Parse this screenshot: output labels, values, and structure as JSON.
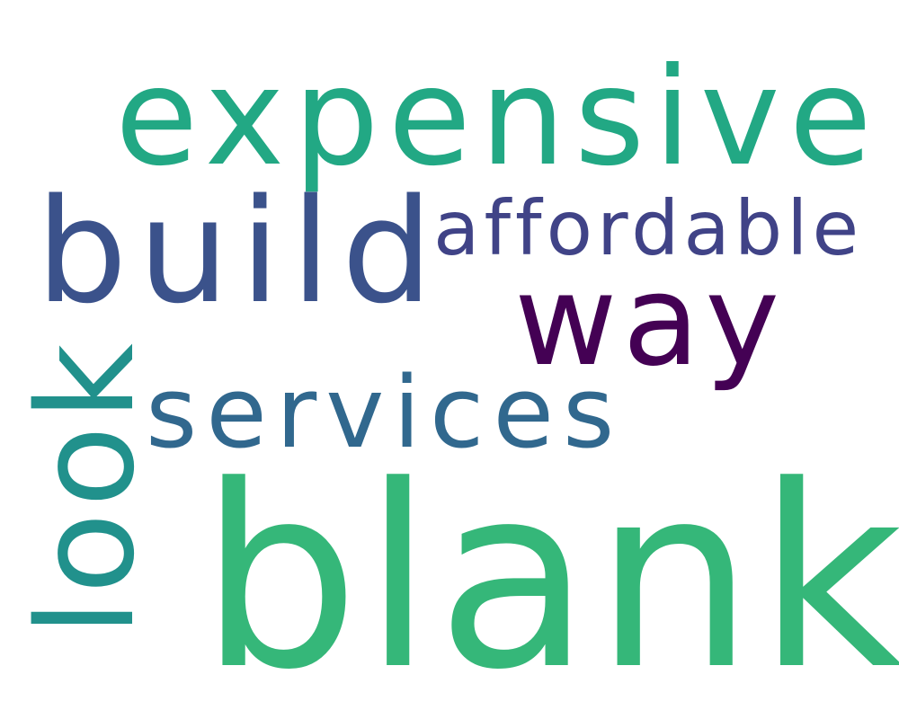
{
  "words": {
    "expensive": {
      "text": "expensive",
      "color": "#22a884"
    },
    "build": {
      "text": "build",
      "color": "#3b528b"
    },
    "affordable": {
      "text": "affordable",
      "color": "#404387"
    },
    "way": {
      "text": "way",
      "color": "#440154"
    },
    "services": {
      "text": "services",
      "color": "#31688e"
    },
    "look": {
      "text": "look",
      "color": "#21918c",
      "orientation": "vertical"
    },
    "blank": {
      "text": "blank",
      "color": "#35b779"
    }
  }
}
